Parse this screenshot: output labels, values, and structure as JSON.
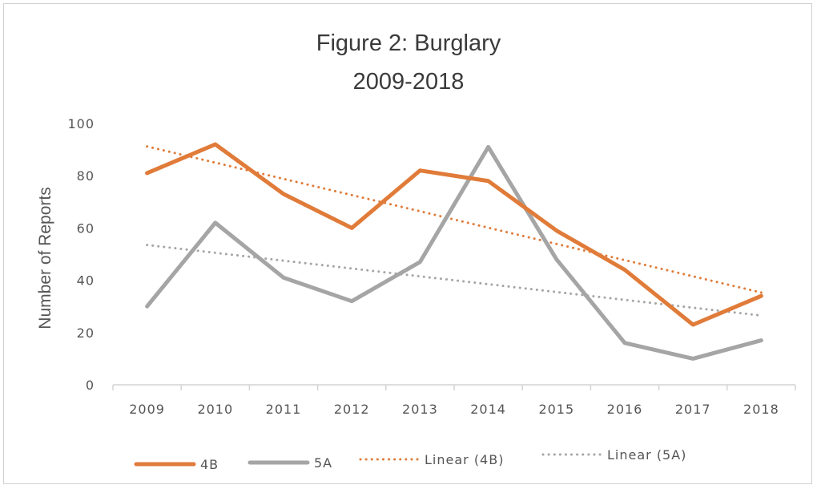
{
  "chart_data": {
    "type": "line",
    "title": "Figure 2: Burglary",
    "subtitle": "2009-2018",
    "xlabel": "",
    "ylabel": "Number of Reports",
    "categories": [
      "2009",
      "2010",
      "2011",
      "2012",
      "2013",
      "2014",
      "2015",
      "2016",
      "2017",
      "2018"
    ],
    "ylim": [
      0,
      100
    ],
    "yticks": [
      "0",
      "20",
      "40",
      "60",
      "80",
      "100"
    ],
    "grid": false,
    "legend_position": "bottom",
    "series": [
      {
        "name": "4B",
        "style": "solid",
        "color": "#e07b39",
        "values": [
          81,
          92,
          73,
          60,
          82,
          78,
          59,
          44,
          23,
          34
        ]
      },
      {
        "name": "5A",
        "style": "solid",
        "color": "#a5a5a5",
        "values": [
          30,
          62,
          41,
          32,
          47,
          91,
          48,
          16,
          10,
          17
        ]
      },
      {
        "name": "Linear (4B)",
        "style": "dotted",
        "color": "#e07b39",
        "values": [
          91.2,
          85.0,
          78.8,
          72.6,
          66.4,
          60.1,
          53.9,
          47.7,
          41.5,
          35.3
        ]
      },
      {
        "name": "Linear (5A)",
        "style": "dotted",
        "color": "#a5a5a5",
        "values": [
          53.5,
          50.5,
          47.5,
          44.5,
          41.5,
          38.5,
          35.5,
          32.5,
          29.5,
          26.5
        ]
      }
    ]
  }
}
